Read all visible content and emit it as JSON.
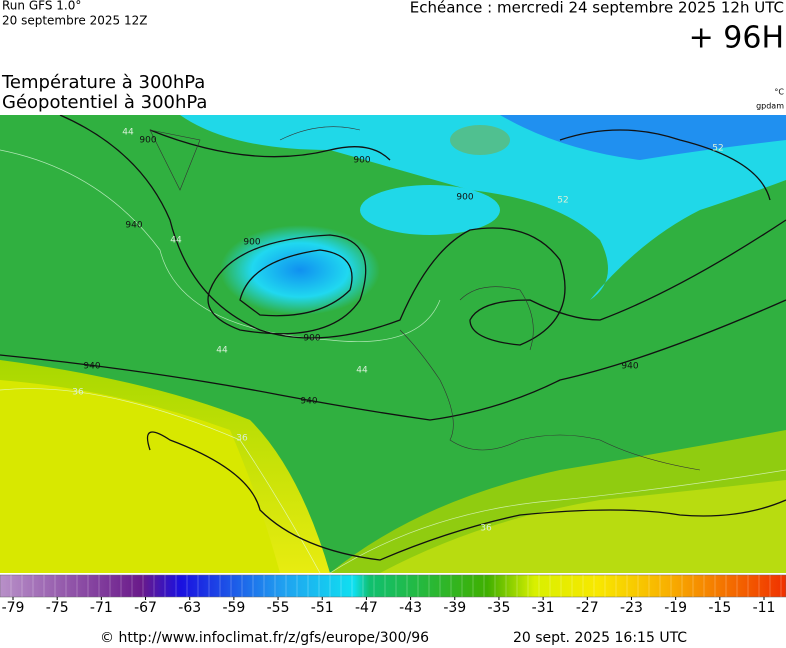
{
  "header": {
    "run": "Run GFS 1.0°",
    "run_date": "20 septembre 2025 12Z",
    "valid_time": "Echéance : mercredi 24 septembre 2025 12h UTC",
    "lead": "+ 96H",
    "title_1": "Température à 300hPa",
    "title_2": "Géopotentiel à 300hPa",
    "unit_1": "°C",
    "unit_2": "gpdam"
  },
  "map": {
    "geopotential_labels": [
      "900",
      "900",
      "900",
      "900",
      "900",
      "940",
      "940",
      "940",
      "940"
    ],
    "temperature_labels": [
      "44",
      "44",
      "44",
      "44",
      "36",
      "36",
      "36",
      "52",
      "52"
    ]
  },
  "colorbar": {
    "ticks": [
      -79,
      -75,
      -71,
      -67,
      -63,
      -59,
      -55,
      -51,
      -47,
      -43,
      -39,
      -35,
      -31,
      -27,
      -23,
      -19,
      -15,
      -11
    ]
  },
  "footer": {
    "url": "© http://www.infoclimat.fr/z/gfs/europe/300/96",
    "timestamp": "20 sept. 2025 16:15 UTC"
  }
}
